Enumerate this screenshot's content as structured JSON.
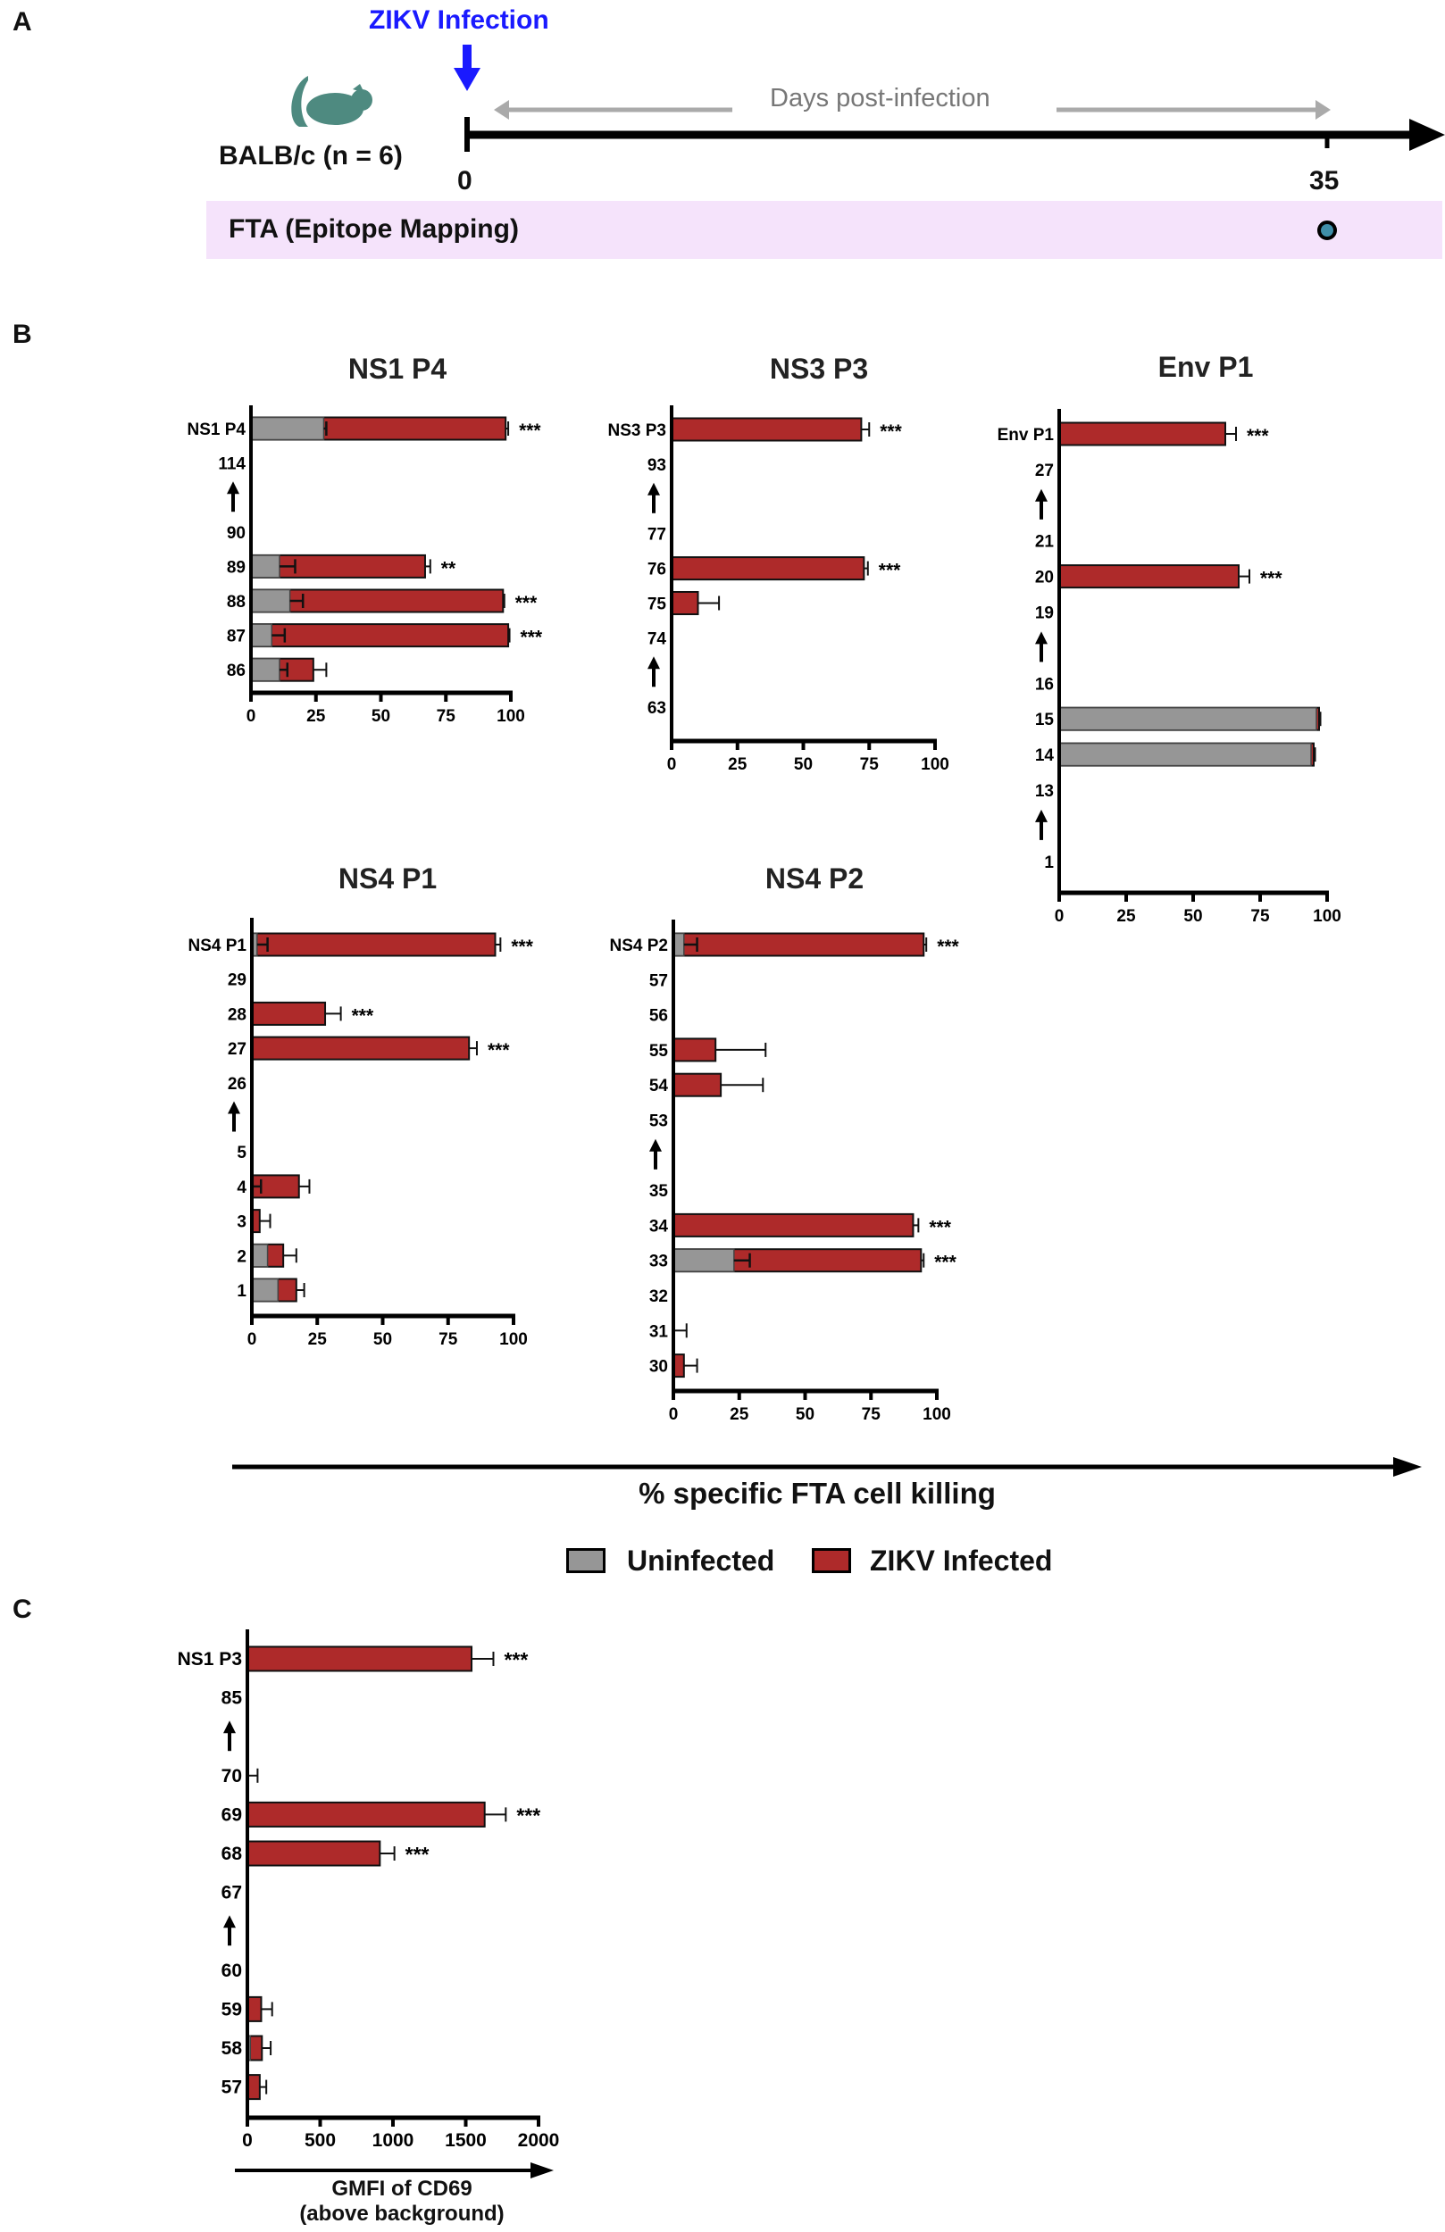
{
  "panel_a": {
    "letter": "A",
    "infection_label": "ZIKV Infection",
    "mouse_label": "BALB/c (n = 6)",
    "timeline_caption": "Days post-infection",
    "day_start": "0",
    "day_end": "35",
    "assay_label": "FTA (Epitope Mapping)",
    "colors": {
      "infection": "#1a1aff",
      "band": "#f5e3fb",
      "mouse": "#4e8a80",
      "dot": "#3f8ea8"
    }
  },
  "panel_b": {
    "letter": "B",
    "xlabel": "% specific FTA cell killing",
    "legend": [
      {
        "label": "Uninfected",
        "color": "#969696"
      },
      {
        "label": "ZIKV Infected",
        "color": "#ae2a2a"
      }
    ]
  },
  "panel_c": {
    "letter": "C",
    "xlabel_line1": "GMFI of CD69",
    "xlabel_line2": "(above background)"
  },
  "chart_data": [
    {
      "id": "ns1p4",
      "type": "bar",
      "title": "NS1 P4",
      "xlim": [
        0,
        100
      ],
      "ticks": [
        "0",
        "25",
        "50",
        "75",
        "100"
      ],
      "rows": [
        {
          "label": "NS1 P4",
          "gray": 28,
          "gray_err": 1,
          "red": 98,
          "red_err": 1,
          "sig": "***"
        },
        {
          "label": "114"
        },
        {
          "arrow": true
        },
        {
          "label": "90"
        },
        {
          "label": "89",
          "gray": 11,
          "gray_err": 6,
          "red": 67,
          "red_err": 2,
          "sig": "**"
        },
        {
          "label": "88",
          "gray": 15,
          "gray_err": 5,
          "red": 97,
          "red_err": 0.5,
          "sig": "***"
        },
        {
          "label": "87",
          "gray": 8,
          "gray_err": 5,
          "red": 99,
          "red_err": 0.5,
          "sig": "***"
        },
        {
          "label": "86",
          "gray": 11,
          "gray_err": 3,
          "red": 24,
          "red_err": 5
        }
      ]
    },
    {
      "id": "ns3p3",
      "type": "bar",
      "title": "NS3 P3",
      "xlim": [
        0,
        100
      ],
      "ticks": [
        "0",
        "25",
        "50",
        "75",
        "100"
      ],
      "rows": [
        {
          "label": "NS3 P3",
          "red": 72,
          "red_err": 3,
          "sig": "***"
        },
        {
          "label": "93"
        },
        {
          "arrow": true
        },
        {
          "label": "77"
        },
        {
          "label": "76",
          "red": 73,
          "red_err": 1.5,
          "sig": "***"
        },
        {
          "label": "75",
          "red": 10,
          "red_err": 8
        },
        {
          "label": "74"
        },
        {
          "arrow": true
        },
        {
          "label": "63"
        }
      ]
    },
    {
      "id": "envp1",
      "type": "bar",
      "title": "Env P1",
      "xlim": [
        0,
        100
      ],
      "ticks": [
        "0",
        "25",
        "50",
        "75",
        "100"
      ],
      "rows": [
        {
          "label": "Env P1",
          "red": 62,
          "red_err": 4,
          "sig": "***"
        },
        {
          "label": "27"
        },
        {
          "arrow": true
        },
        {
          "label": "21"
        },
        {
          "label": "20",
          "red": 67,
          "red_err": 4,
          "sig": "***"
        },
        {
          "label": "19"
        },
        {
          "arrow": true
        },
        {
          "label": "16"
        },
        {
          "label": "15",
          "gray": 96,
          "red": 97,
          "red_err": 0.5
        },
        {
          "label": "14",
          "gray": 94,
          "red": 95,
          "red_err": 0.5
        },
        {
          "label": "13"
        },
        {
          "arrow": true
        },
        {
          "label": "1"
        }
      ]
    },
    {
      "id": "ns4p1",
      "type": "bar",
      "title": "NS4 P1",
      "xlim": [
        0,
        100
      ],
      "ticks": [
        "0",
        "25",
        "50",
        "75",
        "100"
      ],
      "rows": [
        {
          "label": "NS4 P1",
          "gray": 2,
          "gray_err": 4,
          "red": 93,
          "red_err": 2,
          "sig": "***"
        },
        {
          "label": "29"
        },
        {
          "label": "28",
          "red": 28,
          "red_err": 6,
          "sig": "***"
        },
        {
          "label": "27",
          "red": 83,
          "red_err": 3,
          "sig": "***"
        },
        {
          "label": "26"
        },
        {
          "arrow": true
        },
        {
          "label": "5"
        },
        {
          "label": "4",
          "gray": 0.5,
          "gray_err": 3,
          "red": 18,
          "red_err": 4
        },
        {
          "label": "3",
          "red": 3,
          "red_err": 4
        },
        {
          "label": "2",
          "gray": 6,
          "red": 12,
          "red_err": 5
        },
        {
          "label": "1",
          "gray": 10,
          "red": 17,
          "red_err": 3
        }
      ]
    },
    {
      "id": "ns4p2",
      "type": "bar",
      "title": "NS4 P2",
      "xlim": [
        0,
        100
      ],
      "ticks": [
        "0",
        "25",
        "50",
        "75",
        "100"
      ],
      "rows": [
        {
          "label": "NS4 P2",
          "gray": 4,
          "gray_err": 5,
          "red": 95,
          "red_err": 1,
          "sig": "***"
        },
        {
          "label": "57"
        },
        {
          "label": "56"
        },
        {
          "label": "55",
          "red": 16,
          "red_err": 19
        },
        {
          "label": "54",
          "red": 18,
          "red_err": 16
        },
        {
          "label": "53"
        },
        {
          "arrow": true
        },
        {
          "label": "35"
        },
        {
          "label": "34",
          "red": 91,
          "red_err": 2,
          "sig": "***"
        },
        {
          "label": "33",
          "gray": 23,
          "gray_err": 6,
          "red": 94,
          "red_err": 1,
          "sig": "***"
        },
        {
          "label": "32"
        },
        {
          "label": "31",
          "red": 0,
          "red_err": 5
        },
        {
          "label": "30",
          "red": 4,
          "red_err": 5
        }
      ]
    },
    {
      "id": "ns1p3",
      "type": "bar",
      "title": "",
      "xlim": [
        0,
        2000
      ],
      "ticks": [
        "0",
        "500",
        "1000",
        "1500",
        "2000"
      ],
      "rows": [
        {
          "label": "NS1 P3",
          "red": 1540,
          "red_err": 150,
          "sig": "***"
        },
        {
          "label": "85"
        },
        {
          "arrow": true
        },
        {
          "label": "70",
          "red": 0,
          "red_err": 70
        },
        {
          "label": "69",
          "red": 1630,
          "red_err": 145,
          "sig": "***"
        },
        {
          "label": "68",
          "red": 910,
          "red_err": 100,
          "sig": "***"
        },
        {
          "label": "67"
        },
        {
          "arrow": true
        },
        {
          "label": "60"
        },
        {
          "label": "59",
          "red": 95,
          "red_err": 75
        },
        {
          "label": "58",
          "gray": 20,
          "red": 100,
          "red_err": 60
        },
        {
          "label": "57",
          "red": 85,
          "red_err": 45
        }
      ]
    }
  ]
}
